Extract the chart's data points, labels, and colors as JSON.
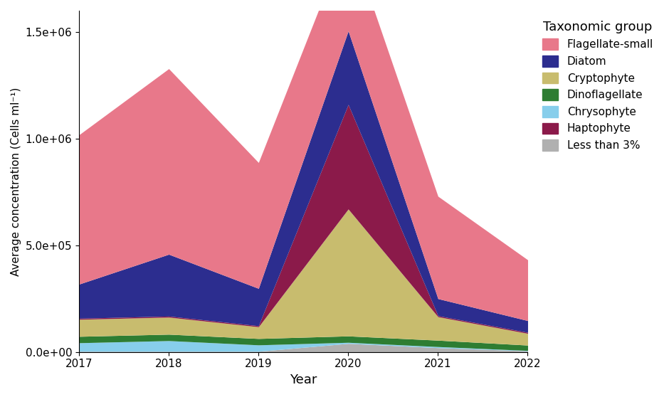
{
  "years": [
    2017,
    2018,
    2019,
    2020,
    2021,
    2022
  ],
  "groups": [
    {
      "name": "Less than 3%",
      "color": "#b0b0b0",
      "values": [
        3000,
        3000,
        3000,
        40000,
        20000,
        5000
      ]
    },
    {
      "name": "Chrysophyte",
      "color": "#87CEEB",
      "values": [
        40000,
        50000,
        30000,
        5000,
        5000,
        2000
      ]
    },
    {
      "name": "Dinoflagellate",
      "color": "#2E7D32",
      "values": [
        30000,
        30000,
        30000,
        30000,
        30000,
        25000
      ]
    },
    {
      "name": "Cryptophyte",
      "color": "#C8BC6E",
      "values": [
        80000,
        80000,
        55000,
        595000,
        110000,
        55000
      ]
    },
    {
      "name": "Haptophyte",
      "color": "#8B1A4A",
      "values": [
        5000,
        5000,
        5000,
        490000,
        5000,
        5000
      ]
    },
    {
      "name": "Diatom",
      "color": "#2C2D8F",
      "values": [
        160000,
        290000,
        175000,
        345000,
        80000,
        55000
      ]
    },
    {
      "name": "Flagellate-small",
      "color": "#E8788A",
      "values": [
        700000,
        870000,
        590000,
        450000,
        480000,
        285000
      ]
    }
  ],
  "xlabel": "Year",
  "ylabel": "Average concentration (Cells ml⁻¹)",
  "legend_title": "Taxonomic group",
  "ylim": [
    0,
    1600000
  ],
  "yticks": [
    0,
    500000,
    1000000,
    1500000
  ],
  "background_color": "#ffffff"
}
